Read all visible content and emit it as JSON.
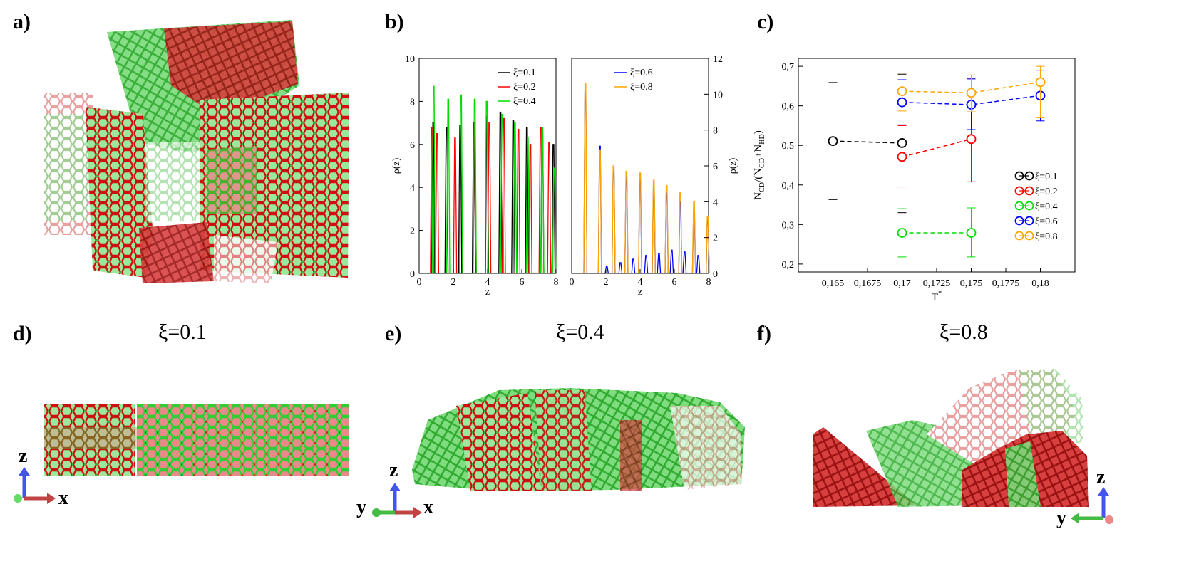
{
  "panel_labels": {
    "a": "a)",
    "b": "b)",
    "c": "c)",
    "d": "d)",
    "e": "e)",
    "f": "f)"
  },
  "structure_titles": {
    "d": "ξ=0.1",
    "e": "ξ=0.4",
    "f": "ξ=0.8"
  },
  "axis_triads": {
    "d": {
      "up": "z",
      "right": "x"
    },
    "e": {
      "left": "y",
      "up": "z",
      "right": "x"
    },
    "f": {
      "up": "z",
      "left": "y"
    }
  },
  "colors": {
    "xi_0_1": "#000000",
    "xi_0_2": "#ff0000",
    "xi_0_4": "#00dd00",
    "xi_0_6": "#0000ff",
    "xi_0_8": "#ffa500",
    "cd_red": "#cc1111",
    "hd_green": "#44cc44"
  },
  "chart_data": [
    {
      "id": "b-left",
      "type": "line",
      "xlabel": "z",
      "ylabel": "ρ(z)",
      "xlim": [
        0,
        8
      ],
      "ylim": [
        0,
        10
      ],
      "xticks": [
        "0",
        "2",
        "4",
        "6",
        "8"
      ],
      "yticks": [
        "0",
        "2",
        "4",
        "6",
        "8",
        "10"
      ],
      "series": [
        {
          "name": "ξ=0.1",
          "color": "#000000",
          "peaks": [
            [
              0.82,
              7.0
            ],
            [
              1.6,
              6.8
            ],
            [
              2.4,
              6.9
            ],
            [
              3.2,
              7.0
            ],
            [
              3.97,
              7.3
            ],
            [
              4.75,
              7.5
            ],
            [
              5.5,
              7.1
            ],
            [
              6.3,
              6.8
            ],
            [
              7.2,
              6.8
            ],
            [
              7.85,
              6.0
            ]
          ]
        },
        {
          "name": "ξ=0.2",
          "color": "#ff0000",
          "peaks": [
            [
              0.75,
              6.8
            ],
            [
              1.05,
              6.5
            ],
            [
              2.1,
              6.3
            ],
            [
              3.25,
              7.0
            ],
            [
              4.1,
              7.0
            ],
            [
              4.95,
              7.2
            ],
            [
              5.8,
              6.7
            ],
            [
              6.5,
              6.0
            ],
            [
              7.1,
              6.8
            ],
            [
              7.6,
              6.1
            ]
          ]
        },
        {
          "name": "ξ=0.4",
          "color": "#00dd00",
          "peaks": [
            [
              0.85,
              8.7
            ],
            [
              1.7,
              8.1
            ],
            [
              2.45,
              8.3
            ],
            [
              3.25,
              8.1
            ],
            [
              3.95,
              8.0
            ],
            [
              4.85,
              7.4
            ],
            [
              5.6,
              7.0
            ],
            [
              6.35,
              6.3
            ],
            [
              7.2,
              6.8
            ],
            [
              7.9,
              4.9
            ]
          ]
        }
      ]
    },
    {
      "id": "b-right",
      "type": "line",
      "xlabel": "z",
      "ylabel": "ρ(z)",
      "xlim": [
        0,
        8
      ],
      "ylim": [
        0,
        12
      ],
      "xticks": [
        "0",
        "2",
        "4",
        "6",
        "8"
      ],
      "yticks": [
        "0",
        "2",
        "4",
        "6",
        "8",
        "10",
        "12"
      ],
      "series": [
        {
          "name": "ξ=0.6",
          "color": "#0000ff",
          "peaks": [
            [
              0.8,
              10.2
            ],
            [
              1.65,
              7.1
            ],
            [
              2.45,
              5.9
            ],
            [
              3.2,
              5.4
            ],
            [
              4.0,
              5.2
            ],
            [
              4.8,
              4.8
            ],
            [
              5.55,
              4.5
            ],
            [
              6.35,
              4.0
            ],
            [
              7.15,
              3.5
            ],
            [
              7.95,
              3.0
            ],
            [
              2.05,
              0.4
            ],
            [
              2.85,
              0.6
            ],
            [
              3.6,
              0.8
            ],
            [
              4.35,
              1.0
            ],
            [
              5.1,
              1.1
            ],
            [
              5.85,
              1.3
            ],
            [
              6.6,
              1.2
            ],
            [
              7.4,
              1.0
            ]
          ]
        },
        {
          "name": "ξ=0.8",
          "color": "#ffa500",
          "peaks": [
            [
              0.8,
              10.6
            ],
            [
              1.65,
              6.9
            ],
            [
              2.45,
              6.0
            ],
            [
              3.2,
              5.7
            ],
            [
              4.0,
              5.6
            ],
            [
              4.8,
              5.2
            ],
            [
              5.55,
              4.9
            ],
            [
              6.35,
              4.5
            ],
            [
              7.15,
              4.0
            ],
            [
              7.95,
              3.2
            ]
          ]
        }
      ]
    },
    {
      "id": "c",
      "type": "scatter",
      "xlabel_main": "T",
      "xlabel_sup": "*",
      "ylabel_parts": {
        "n": "N",
        "cd": "CD",
        "slash": "/(N",
        "cd2": "CD",
        "plus": "+N",
        "hd": "HD",
        "close": ")"
      },
      "xlim": [
        0.1625,
        0.1825
      ],
      "ylim": [
        0.18,
        0.72
      ],
      "xticks": [
        "0,165",
        "0,1675",
        "0,17",
        "0,1725",
        "0,175",
        "0,1775",
        "0,18"
      ],
      "yticks": [
        "0,2",
        "0,3",
        "0,4",
        "0,5",
        "0,6",
        "0,7"
      ],
      "series": [
        {
          "name": "ξ=0.1",
          "color": "#000000",
          "points": [
            {
              "x": 0.165,
              "y": 0.511,
              "lo": 0.363,
              "hi": 0.659
            },
            {
              "x": 0.17,
              "y": 0.506,
              "lo": 0.33,
              "hi": 0.68
            }
          ]
        },
        {
          "name": "ξ=0.2",
          "color": "#ff0000",
          "points": [
            {
              "x": 0.17,
              "y": 0.471,
              "lo": 0.395,
              "hi": 0.55
            },
            {
              "x": 0.175,
              "y": 0.516,
              "lo": 0.408,
              "hi": 0.67
            }
          ]
        },
        {
          "name": "ξ=0.4",
          "color": "#00dd00",
          "points": [
            {
              "x": 0.17,
              "y": 0.279,
              "lo": 0.218,
              "hi": 0.34
            },
            {
              "x": 0.175,
              "y": 0.279,
              "lo": 0.218,
              "hi": 0.342
            }
          ]
        },
        {
          "name": "ξ=0.6",
          "color": "#0000ff",
          "points": [
            {
              "x": 0.17,
              "y": 0.609,
              "lo": 0.552,
              "hi": 0.666
            },
            {
              "x": 0.175,
              "y": 0.603,
              "lo": 0.54,
              "hi": 0.668
            },
            {
              "x": 0.18,
              "y": 0.626,
              "lo": 0.562,
              "hi": 0.69
            }
          ]
        },
        {
          "name": "ξ=0.8",
          "color": "#ffa500",
          "points": [
            {
              "x": 0.17,
              "y": 0.637,
              "lo": 0.587,
              "hi": 0.683
            },
            {
              "x": 0.175,
              "y": 0.633,
              "lo": 0.585,
              "hi": 0.678
            },
            {
              "x": 0.18,
              "y": 0.66,
              "lo": 0.57,
              "hi": 0.7
            }
          ]
        }
      ]
    }
  ]
}
